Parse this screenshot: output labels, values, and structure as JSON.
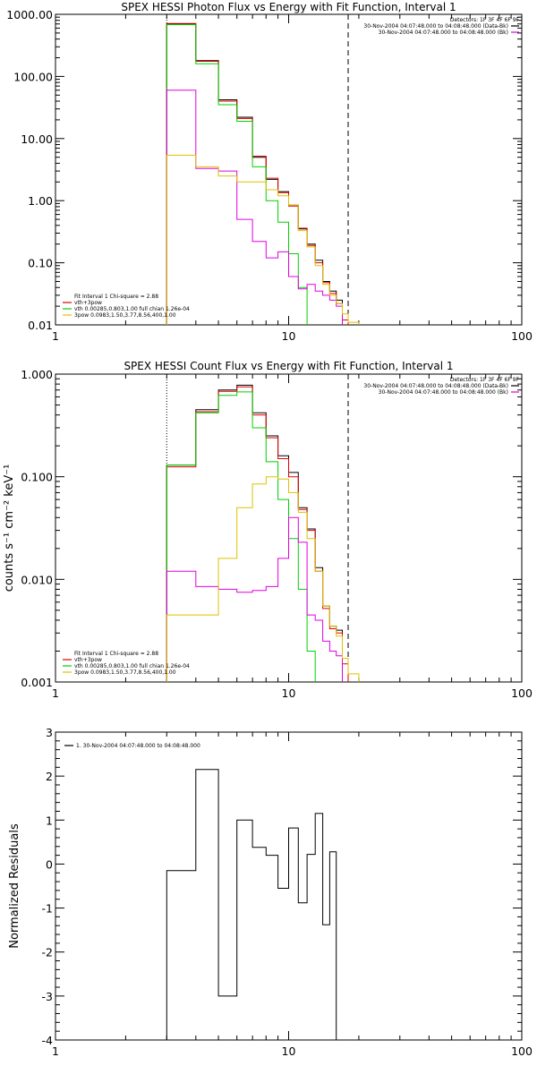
{
  "chart_data": [
    {
      "type": "line",
      "title": "SPEX HESSI Photon Flux vs Energy with Fit Function, Interval 1",
      "xscale": "log",
      "yscale": "log",
      "xlim": [
        1,
        100
      ],
      "ylim": [
        0.01,
        1000
      ],
      "x_ticks": [
        1,
        10,
        100
      ],
      "x_tick_labels": [
        "1",
        "10",
        "100"
      ],
      "y_ticks": [
        0.01,
        0.1,
        1,
        10,
        100,
        1000
      ],
      "y_tick_labels": [
        "0.01",
        "0.10",
        "1.00",
        "10.00",
        "100.00",
        "1000.00"
      ],
      "legend_right": [
        {
          "text": "Detectors: 1F 3F 4F 6F 9F",
          "color": ""
        },
        {
          "text": "30-Nov-2004 04:07:48.000 to 04:08:48.000 (Data-Bk)",
          "color": "#000000"
        },
        {
          "text": "30-Nov-2004 04:07:48.000 to 04:08:48.000 (Bk)",
          "color": "#e000e0"
        }
      ],
      "legend_left": [
        {
          "text": "Fit Interval 1   Chi-square = 2.88",
          "color": ""
        },
        {
          "text": "vth+3pow",
          "color": "#e00000"
        },
        {
          "text": "vth 0.00285,0.803,1.00  full chian 1.26e-04",
          "color": "#00d000"
        },
        {
          "text": "3pow 0.0983,1.50,3.77,8.56,400,1.00",
          "color": "#e0c000"
        }
      ],
      "edges": [
        3.0,
        4.0,
        5.0,
        6.0,
        7.0,
        8.0,
        9.0,
        10.0,
        11.0,
        12.0,
        13.0,
        14.0,
        15.0,
        16.0,
        17.0,
        18.0,
        20.0
      ],
      "vlines": [
        {
          "x": 3.0,
          "style": "dotted"
        },
        {
          "x": 18.0,
          "style": "dashed"
        }
      ],
      "series": [
        {
          "color": "#000000",
          "values": [
            700,
            180,
            42,
            22,
            5.0,
            2.2,
            1.4,
            0.85,
            0.35,
            0.2,
            0.11,
            0.05,
            0.035,
            0.025,
            null,
            null
          ]
        },
        {
          "color": "#e00000",
          "values": [
            710,
            175,
            40,
            21,
            5.2,
            2.3,
            1.35,
            0.82,
            0.36,
            0.19,
            0.1,
            0.048,
            0.032,
            0.022,
            0.012,
            null
          ]
        },
        {
          "color": "#00d000",
          "values": [
            680,
            160,
            35,
            19,
            3.5,
            1.0,
            0.45,
            0.14,
            0.04,
            0.008,
            null,
            null,
            null,
            null,
            null,
            null
          ]
        },
        {
          "color": "#e000e0",
          "values": [
            60,
            3.3,
            3.0,
            0.5,
            0.22,
            0.12,
            0.15,
            0.06,
            0.038,
            0.045,
            0.035,
            0.03,
            0.025,
            0.02,
            null,
            null
          ]
        },
        {
          "color": "#e0c000",
          "values": [
            5.4,
            3.5,
            2.5,
            2.0,
            2.0,
            1.5,
            1.2,
            0.85,
            0.33,
            0.18,
            0.09,
            0.045,
            0.03,
            0.022,
            0.015,
            0.011
          ]
        }
      ]
    },
    {
      "type": "line",
      "title": "SPEX HESSI Count Flux vs Energy with Fit Function, Interval 1",
      "ylabel": "counts s⁻¹ cm⁻² keV⁻¹",
      "xscale": "log",
      "yscale": "log",
      "xlim": [
        1,
        100
      ],
      "ylim": [
        0.001,
        1.0
      ],
      "x_ticks": [
        1,
        10,
        100
      ],
      "x_tick_labels": [
        "1",
        "10",
        "100"
      ],
      "y_ticks": [
        0.001,
        0.01,
        0.1,
        1.0
      ],
      "y_tick_labels": [
        "0.001",
        "0.010",
        "0.100",
        "1.000"
      ],
      "legend_right": [
        {
          "text": "Detectors: 1F 3F 4F 6F 9F",
          "color": ""
        },
        {
          "text": "30-Nov-2004 04:07:48.000 to 04:08:48.000 (Data-Bk)",
          "color": "#000000"
        },
        {
          "text": "30-Nov-2004 04:07:48.000 to 04:08:48.000 (Bk)",
          "color": "#e000e0"
        }
      ],
      "legend_left": [
        {
          "text": "Fit Interval 1   Chi-square = 2.88",
          "color": ""
        },
        {
          "text": "vth+3pow",
          "color": "#e00000"
        },
        {
          "text": "vth 0.00285,0.803,1.00  full chian 1.26e-04",
          "color": "#00d000"
        },
        {
          "text": "3pow 0.0983,1.50,3.77,8.56,400,1.00",
          "color": "#e0c000"
        }
      ],
      "edges": [
        3.0,
        4.0,
        5.0,
        6.0,
        7.0,
        8.0,
        9.0,
        10.0,
        11.0,
        12.0,
        13.0,
        14.0,
        15.0,
        16.0,
        17.0,
        18.0,
        20.0
      ],
      "vlines": [
        {
          "x": 3.0,
          "style": "dotted"
        },
        {
          "x": 18.0,
          "style": "dashed"
        }
      ],
      "series": [
        {
          "color": "#000000",
          "values": [
            0.13,
            0.45,
            0.7,
            0.78,
            0.42,
            0.25,
            0.16,
            0.11,
            0.05,
            0.031,
            0.013,
            0.0055,
            0.0035,
            0.0032,
            null,
            null
          ]
        },
        {
          "color": "#e00000",
          "values": [
            0.125,
            0.43,
            0.68,
            0.75,
            0.4,
            0.24,
            0.15,
            0.1,
            0.048,
            0.03,
            0.012,
            0.0052,
            0.0033,
            0.003,
            0.0015,
            null
          ]
        },
        {
          "color": "#00d000",
          "values": [
            0.13,
            0.42,
            0.62,
            0.67,
            0.3,
            0.14,
            0.06,
            0.025,
            0.008,
            0.002,
            0.0005,
            null,
            null,
            null,
            null,
            null
          ]
        },
        {
          "color": "#e000e0",
          "values": [
            0.012,
            0.0085,
            0.008,
            0.0075,
            0.0078,
            0.0085,
            0.016,
            0.04,
            0.023,
            0.0045,
            0.004,
            0.0025,
            0.002,
            0.0018,
            null,
            null
          ]
        },
        {
          "color": "#e0c000",
          "values": [
            0.0045,
            0.0045,
            0.016,
            0.05,
            0.085,
            0.1,
            0.095,
            0.07,
            0.045,
            0.025,
            0.012,
            0.0055,
            0.0035,
            0.0028,
            0.0017,
            0.0012
          ]
        }
      ]
    },
    {
      "type": "line",
      "ylabel": "Normalized Residuals",
      "xscale": "log",
      "xlim": [
        1,
        100
      ],
      "ylim": [
        -4,
        3
      ],
      "x_ticks": [
        1,
        10,
        100
      ],
      "x_tick_labels": [
        "1",
        "10",
        "100"
      ],
      "y_ticks": [
        -4,
        -3,
        -2,
        -1,
        0,
        1,
        2,
        3
      ],
      "y_tick_labels": [
        "-4",
        "-3",
        "-2",
        "-1",
        "0",
        "1",
        "2",
        "3"
      ],
      "legend_left": [
        {
          "text": "1. 30-Nov-2004 04:07:48.000 to 04:08:48.000",
          "color": "#000000"
        }
      ],
      "edges": [
        3.0,
        4.0,
        5.0,
        6.0,
        7.0,
        8.0,
        9.0,
        10.0,
        11.0,
        12.0,
        13.0,
        14.0,
        15.0,
        16.0,
        17.0,
        18.0
      ],
      "close_to_bottom": true,
      "series": [
        {
          "color": "#000000",
          "values": [
            -0.15,
            2.15,
            -3.0,
            1.0,
            0.38,
            0.2,
            -0.55,
            0.82,
            -0.88,
            0.22,
            1.15,
            -1.38,
            0.28,
            null,
            null
          ]
        }
      ]
    }
  ]
}
